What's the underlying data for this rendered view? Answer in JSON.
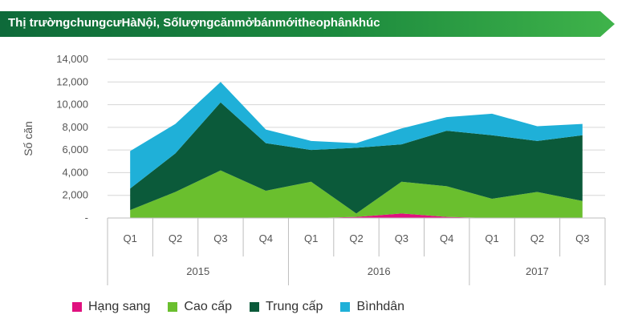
{
  "banner": {
    "title": "Thị trườngchungcưHàNội, Sốlượngcănmởbánmớitheophânkhúc"
  },
  "chart_data": {
    "type": "area",
    "stacked": true,
    "ylabel": "Số căn",
    "ylim": [
      0,
      14000
    ],
    "yticks": [
      0,
      2000,
      4000,
      6000,
      8000,
      10000,
      12000,
      14000
    ],
    "ytick_labels": [
      "-",
      "2,000",
      "4,000",
      "6,000",
      "8,000",
      "10,000",
      "12,000",
      "14,000"
    ],
    "categories": [
      "Q1",
      "Q2",
      "Q3",
      "Q4",
      "Q1",
      "Q2",
      "Q3",
      "Q4",
      "Q1",
      "Q2",
      "Q3"
    ],
    "years": [
      {
        "label": "2015",
        "count": 4
      },
      {
        "label": "2016",
        "count": 4
      },
      {
        "label": "2017",
        "count": 3
      }
    ],
    "series": [
      {
        "name": "Hạng sang",
        "color": "#e0117f",
        "values": [
          0,
          0,
          0,
          0,
          0,
          100,
          400,
          100,
          0,
          0,
          0
        ]
      },
      {
        "name": "Cao cấp",
        "color": "#6abf2e",
        "values": [
          700,
          2300,
          4200,
          2400,
          3200,
          300,
          2800,
          2700,
          1700,
          2300,
          1500
        ]
      },
      {
        "name": "Trung cấp",
        "color": "#0b5a3a",
        "values": [
          1900,
          3400,
          6000,
          4200,
          2800,
          5800,
          3300,
          4900,
          5600,
          4500,
          5800
        ]
      },
      {
        "name": "Bìnhdân",
        "color": "#1fb0d8",
        "values": [
          3300,
          2600,
          1800,
          1200,
          800,
          400,
          1400,
          1200,
          1900,
          1300,
          1000
        ]
      }
    ]
  }
}
